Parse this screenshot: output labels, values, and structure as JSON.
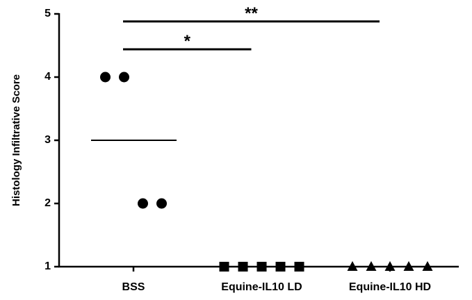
{
  "chart_data": {
    "type": "dot",
    "y_label": "Histology Infiltrative Score",
    "categories": [
      "BSS",
      "Equine-IL10 LD",
      "Equine-IL10 HD"
    ],
    "values": [
      [
        4,
        4,
        2,
        2
      ],
      [
        1,
        1,
        1,
        1,
        1
      ],
      [
        1,
        1,
        1,
        1,
        1
      ]
    ],
    "markers": [
      "circle",
      "square",
      "triangle"
    ],
    "color": "#000000",
    "medians": [
      3,
      null,
      null
    ],
    "ylim": [
      1,
      5
    ],
    "yticks": [
      1,
      2,
      3,
      4,
      5
    ],
    "significance": [
      {
        "text": "*",
        "from": 0,
        "to": 1,
        "y": 4.44
      },
      {
        "text": "**",
        "from": 0,
        "to": 2,
        "y": 4.88
      }
    ]
  }
}
